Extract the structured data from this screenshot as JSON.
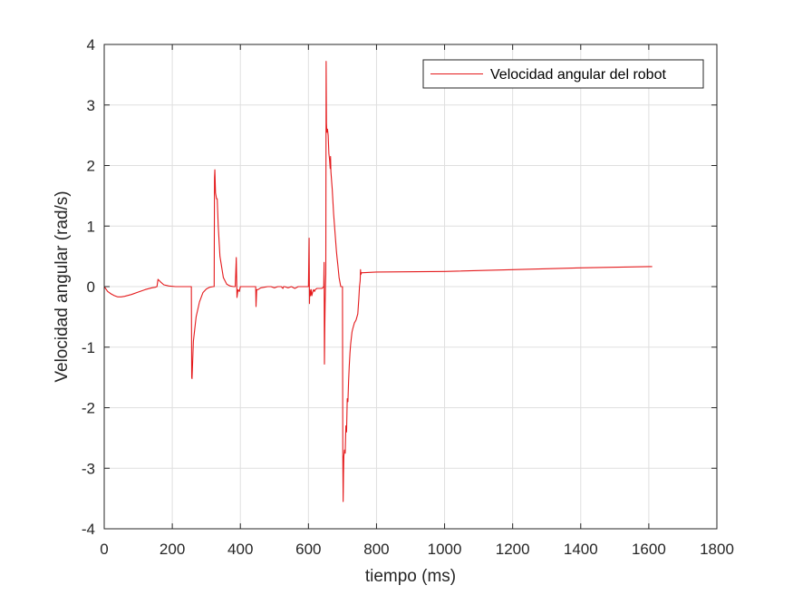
{
  "chart_data": {
    "type": "line",
    "title": "",
    "xlabel": "tiempo (ms)",
    "ylabel": "Velocidad angular (rad/s)",
    "xlim": [
      0,
      1800
    ],
    "ylim": [
      -4,
      4
    ],
    "xticks": [
      0,
      200,
      400,
      600,
      800,
      1000,
      1200,
      1400,
      1600,
      1800
    ],
    "yticks": [
      -4,
      -3,
      -2,
      -1,
      0,
      1,
      2,
      3,
      4
    ],
    "grid": true,
    "legend_position": "top-right",
    "series": [
      {
        "name": "Velocidad angular del robot",
        "color": "#e41a1c",
        "x": [
          0,
          10,
          20,
          30,
          40,
          50,
          60,
          80,
          100,
          120,
          140,
          150,
          155,
          158,
          165,
          175,
          190,
          210,
          230,
          250,
          256,
          257,
          258,
          262,
          270,
          280,
          290,
          300,
          310,
          320,
          323,
          324,
          325,
          327,
          330,
          332,
          335,
          340,
          350,
          360,
          370,
          380,
          385,
          388,
          390,
          393,
          397,
          400,
          420,
          440,
          445,
          446,
          448,
          452,
          460,
          470,
          480,
          490,
          500,
          510,
          520,
          525,
          527,
          530,
          540,
          550,
          560,
          570,
          580,
          590,
          598,
          600,
          602,
          603,
          604,
          605,
          606,
          607,
          608,
          610,
          612,
          615,
          618,
          620,
          625,
          630,
          635,
          640,
          645,
          646,
          647,
          648,
          649,
          650,
          651,
          652,
          653,
          654,
          656,
          658,
          660,
          662,
          664,
          665,
          666,
          668,
          670,
          672,
          674,
          676,
          678,
          680,
          682,
          684,
          686,
          690,
          695,
          698,
          700,
          701,
          702,
          703,
          704,
          706,
          708,
          710,
          712,
          714,
          716,
          718,
          720,
          722,
          724,
          726,
          728,
          730,
          735,
          740,
          745,
          748,
          750,
          752,
          753,
          754,
          756,
          760,
          800,
          1000,
          1200,
          1400,
          1600,
          1610
        ],
        "y": [
          0,
          -0.08,
          -0.12,
          -0.15,
          -0.17,
          -0.17,
          -0.16,
          -0.13,
          -0.09,
          -0.05,
          -0.02,
          -0.01,
          0.0,
          0.12,
          0.08,
          0.03,
          0.01,
          0.0,
          0.0,
          0.0,
          0.0,
          -1.5,
          -1.52,
          -0.9,
          -0.5,
          -0.25,
          -0.1,
          -0.04,
          -0.01,
          0.0,
          0.0,
          1.8,
          1.93,
          1.55,
          1.45,
          1.45,
          1.0,
          0.5,
          0.15,
          0.04,
          0.01,
          0.0,
          0.0,
          0.48,
          -0.18,
          -0.05,
          -0.08,
          0.0,
          0.0,
          0.0,
          0.0,
          -0.33,
          -0.05,
          -0.05,
          -0.02,
          -0.01,
          0.0,
          0.0,
          -0.02,
          0.0,
          0.0,
          -0.03,
          0.0,
          0.0,
          -0.02,
          0.0,
          -0.03,
          0.0,
          0.0,
          0.0,
          0.0,
          0.0,
          0.8,
          -0.28,
          -0.05,
          -0.1,
          -0.15,
          -0.1,
          -0.05,
          -0.15,
          -0.1,
          -0.05,
          -0.08,
          -0.05,
          -0.03,
          -0.03,
          -0.03,
          -0.03,
          0.0,
          0.4,
          -1.28,
          -0.7,
          -0.3,
          0.0,
          0.2,
          3.72,
          2.7,
          2.55,
          2.6,
          2.5,
          2.2,
          2.1,
          1.95,
          2.15,
          1.9,
          1.75,
          1.6,
          1.4,
          1.2,
          1.05,
          0.9,
          0.75,
          0.6,
          0.48,
          0.38,
          0.15,
          0.0,
          0.0,
          0.0,
          -2.8,
          -3.55,
          -3.1,
          -2.8,
          -2.7,
          -2.75,
          -2.3,
          -2.4,
          -1.85,
          -1.9,
          -1.55,
          -1.3,
          -1.1,
          -0.95,
          -0.85,
          -0.75,
          -0.7,
          -0.6,
          -0.55,
          -0.45,
          -0.2,
          0.0,
          0.1,
          0.28,
          0.2,
          0.23,
          0.23,
          0.24,
          0.25,
          0.28,
          0.31,
          0.33,
          0.33
        ]
      }
    ]
  }
}
